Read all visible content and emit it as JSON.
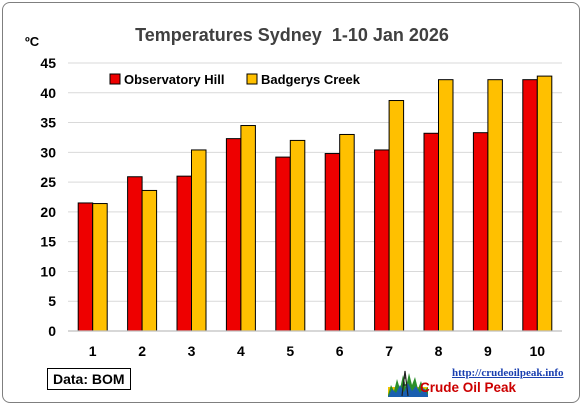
{
  "chart_data": {
    "type": "bar",
    "title": "Temperatures Sydney  1-10 Jan 2026",
    "ylabel": "ºC",
    "xlabel": "",
    "categories": [
      "1",
      "2",
      "3",
      "4",
      "5",
      "6",
      "7",
      "8",
      "9",
      "10"
    ],
    "ylim": [
      0,
      45
    ],
    "yticks": [
      0,
      5,
      10,
      15,
      20,
      25,
      30,
      35,
      40,
      45
    ],
    "grid": true,
    "legend_position": "top-left",
    "series": [
      {
        "name": "Observatory Hill",
        "color": "#ee0000",
        "values": [
          21.5,
          25.9,
          26.0,
          32.3,
          29.2,
          29.8,
          30.4,
          33.2,
          33.3,
          42.2
        ]
      },
      {
        "name": "Badgerys Creek",
        "color": "#ffc000",
        "values": [
          21.4,
          23.6,
          30.4,
          34.5,
          32.0,
          33.0,
          38.7,
          42.2,
          42.2,
          42.8
        ]
      }
    ]
  },
  "source_note": "Data: BOM",
  "watermark": {
    "url": "http://crudeoilpeak.info",
    "name": "Crude Oil Peak",
    "logo_icon": "oil-well-silhouette-icon"
  }
}
